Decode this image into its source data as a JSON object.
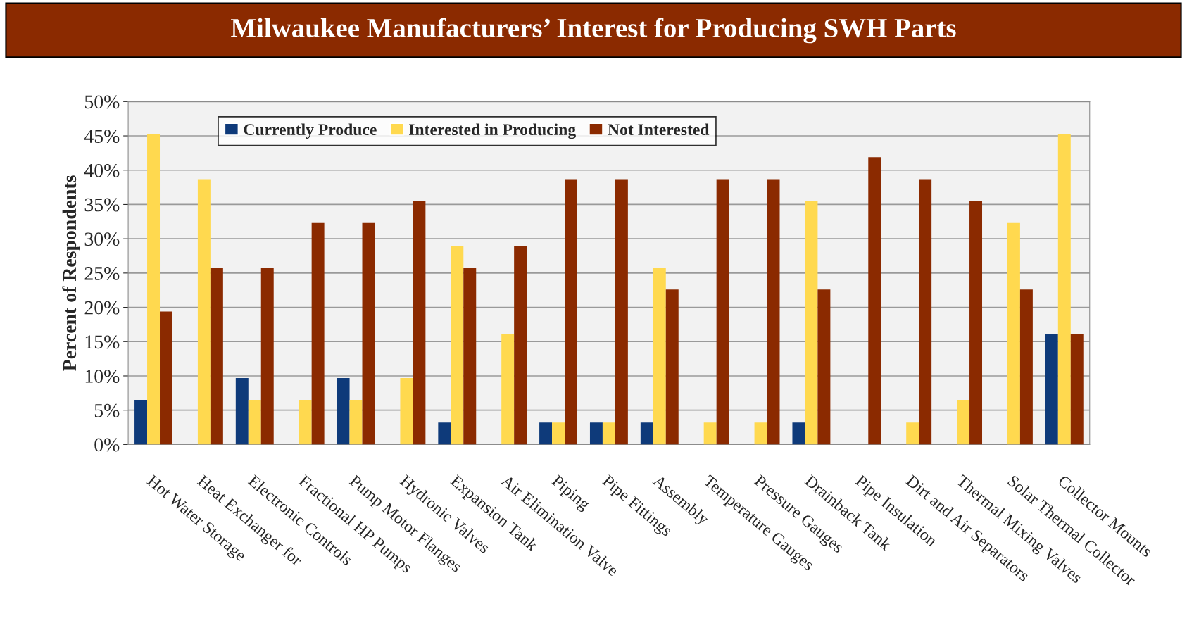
{
  "chart_data": {
    "type": "bar",
    "title": "Milwaukee Manufacturers’ Interest for Producing SWH Parts",
    "ylabel": "Percent of Respondents",
    "categories": [
      "Hot Water Storage",
      "Heat Exchanger for",
      "Electronic Controls",
      "Fractional HP Pumps",
      "Pump Motor Flanges",
      "Hydronic Valves",
      "Expansion Tank",
      "Air Elimination Valve",
      "Piping",
      "Pipe Fittings",
      "Assembly",
      "Temperature Gauges",
      "Pressure Gauges",
      "Drainback Tank",
      "Pipe Insulation",
      "Dirt and Air Separators",
      "Thermal Mixing Valves",
      "Solar Thermal Collector",
      "Collector Mounts"
    ],
    "series": [
      {
        "name": "Currently Produce",
        "color": "#0e3a7a",
        "values": [
          6.5,
          0,
          9.7,
          0,
          9.7,
          0,
          3.2,
          0,
          3.2,
          3.2,
          3.2,
          0,
          0,
          3.2,
          0,
          0,
          0,
          0,
          16.1
        ]
      },
      {
        "name": "Interested in Producing",
        "color": "#ffd94f",
        "values": [
          45.2,
          38.7,
          6.5,
          6.5,
          6.5,
          9.7,
          29.0,
          16.1,
          3.2,
          3.2,
          25.8,
          3.2,
          3.2,
          35.5,
          0,
          3.2,
          6.5,
          32.3,
          45.2
        ]
      },
      {
        "name": "Not Interested",
        "color": "#8b2a00",
        "values": [
          19.4,
          25.8,
          25.8,
          32.3,
          32.3,
          35.5,
          25.8,
          29.0,
          38.7,
          38.7,
          22.6,
          38.7,
          38.7,
          22.6,
          41.9,
          38.7,
          35.5,
          22.6,
          16.1
        ]
      }
    ],
    "ylim": [
      0,
      50
    ],
    "yticks": [
      {
        "value": 0,
        "label": "0%"
      },
      {
        "value": 5,
        "label": "5%"
      },
      {
        "value": 10,
        "label": "10%"
      },
      {
        "value": 15,
        "label": "15%"
      },
      {
        "value": 20,
        "label": "20%"
      },
      {
        "value": 25,
        "label": "25%"
      },
      {
        "value": 30,
        "label": "30%"
      },
      {
        "value": 35,
        "label": "35%"
      },
      {
        "value": 40,
        "label": "40%"
      },
      {
        "value": 45,
        "label": "45%"
      },
      {
        "value": 50,
        "label": "50%"
      }
    ],
    "grid": "y",
    "legend": "top left"
  }
}
